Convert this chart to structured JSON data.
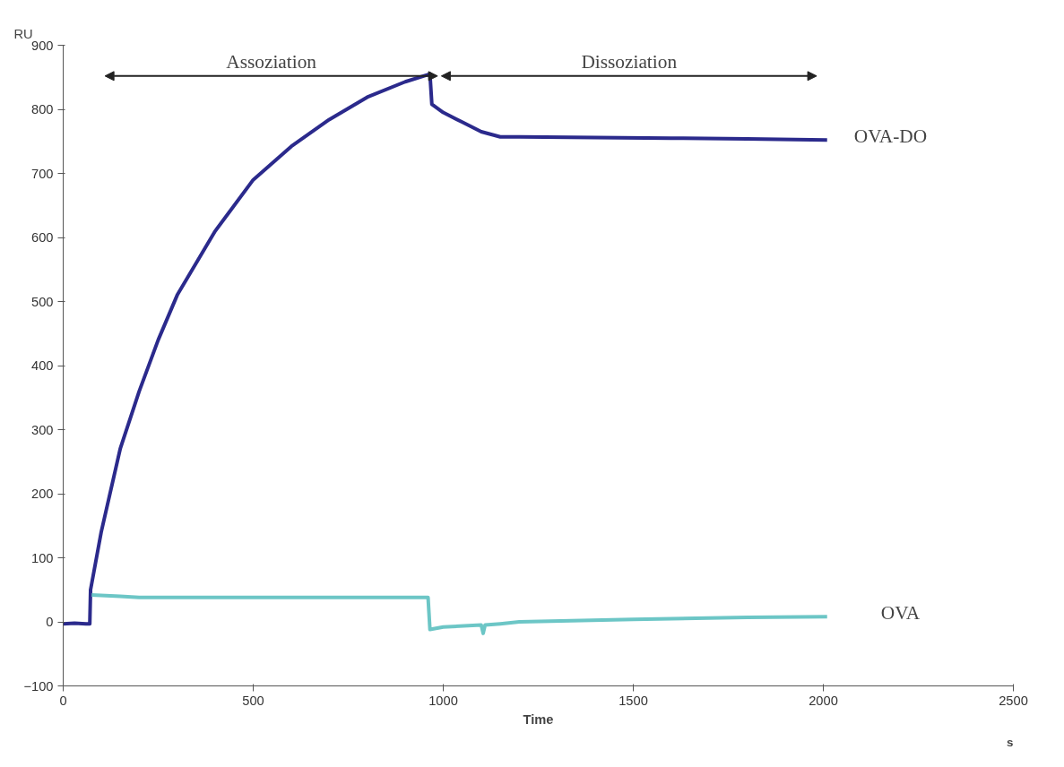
{
  "chart_data": {
    "type": "line",
    "xlabel": "Time",
    "ylabel": "RU",
    "annotations": [
      "Assoziation",
      "Dissoziation",
      "s"
    ],
    "xlim": [
      0,
      2500
    ],
    "xticks": [
      0,
      500,
      1000,
      1500,
      2000,
      2500
    ],
    "ylim": [
      -100,
      900
    ],
    "yticks": [
      -100,
      0,
      100,
      200,
      300,
      400,
      500,
      600,
      700,
      800,
      900
    ],
    "grid": false,
    "legend": false,
    "marker": "none",
    "line_style": "solid",
    "series": [
      {
        "name": "OVA-DO",
        "color": "#2b2a8c",
        "x": [
          0,
          30,
          60,
          70,
          72,
          100,
          150,
          200,
          250,
          300,
          400,
          500,
          600,
          700,
          800,
          900,
          965,
          970,
          1000,
          1050,
          1100,
          1150,
          1200,
          1400,
          1600,
          1800,
          2010
        ],
        "values": [
          -3,
          -2,
          -3,
          -3,
          50,
          140,
          270,
          360,
          440,
          510,
          610,
          690,
          742,
          784,
          819,
          843,
          855,
          808,
          795,
          780,
          765,
          757,
          757,
          756,
          755,
          754,
          752
        ]
      },
      {
        "name": "OVA",
        "color": "#6cc6c6",
        "x": [
          75,
          150,
          200,
          500,
          960,
          965,
          1000,
          1100,
          1105,
          1110,
          1150,
          1200,
          1500,
          1800,
          2010
        ],
        "values": [
          42,
          40,
          38,
          38,
          38,
          -12,
          -8,
          -5,
          -18,
          -5,
          -3,
          0,
          4,
          7,
          8
        ]
      }
    ]
  }
}
